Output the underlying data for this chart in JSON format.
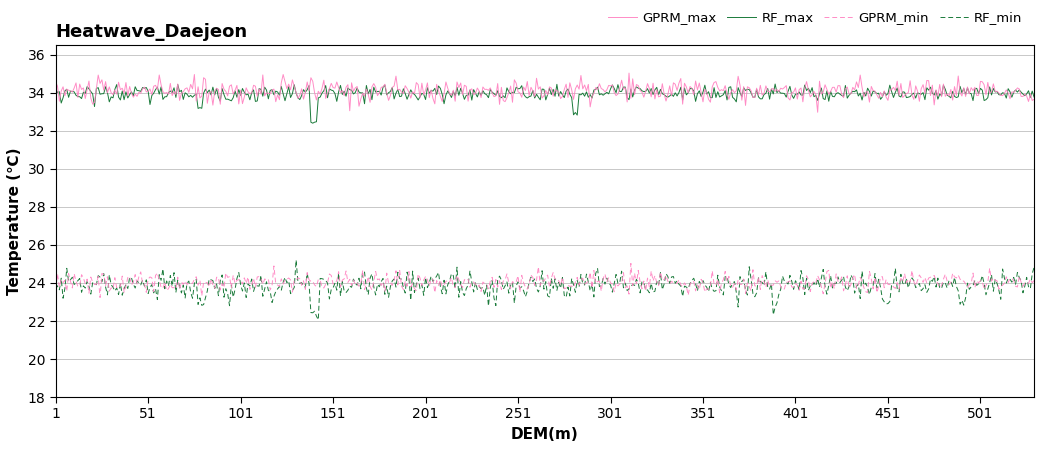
{
  "title": "Heatwave_Daejeon",
  "xlabel": "DEM(m)",
  "ylabel": "Temperature (℃)",
  "xlim": [
    1,
    530
  ],
  "ylim": [
    18,
    36.5
  ],
  "yticks": [
    18,
    20,
    22,
    24,
    26,
    28,
    30,
    32,
    34,
    36
  ],
  "xticks": [
    1,
    51,
    101,
    151,
    201,
    251,
    301,
    351,
    401,
    451,
    501
  ],
  "n_points": 530,
  "gprm_max_base": 34.1,
  "gprm_max_noise": 0.35,
  "rf_max_base": 33.98,
  "rf_max_noise": 0.22,
  "gprm_min_base": 24.05,
  "gprm_min_noise": 0.28,
  "rf_min_base": 23.9,
  "rf_min_noise": 0.38,
  "color_gprm": "#FF80C0",
  "color_rf": "#1A7A3A",
  "linewidth_solid": 0.7,
  "linewidth_dashed": 0.7,
  "legend_labels": [
    "GPRM_max",
    "RF_max",
    "GPRM_min",
    "RF_min"
  ],
  "seed": 42,
  "figwidth": 10.41,
  "figheight": 4.49,
  "dpi": 100
}
